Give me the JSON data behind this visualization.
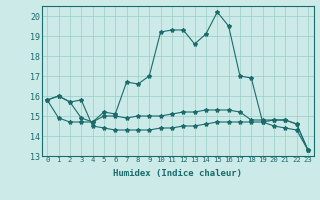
{
  "title": "",
  "xlabel": "Humidex (Indice chaleur)",
  "x_labels": [
    "0",
    "1",
    "2",
    "3",
    "4",
    "5",
    "6",
    "7",
    "8",
    "9",
    "10",
    "11",
    "12",
    "13",
    "14",
    "15",
    "16",
    "17",
    "18",
    "19",
    "20",
    "21",
    "22",
    "23"
  ],
  "ylim": [
    13,
    20.5
  ],
  "xlim": [
    -0.5,
    23.5
  ],
  "yticks": [
    13,
    14,
    15,
    16,
    17,
    18,
    19,
    20
  ],
  "background_color": "#cceae7",
  "grid_color": "#99ccc8",
  "line_color": "#1a6b6b",
  "series1": [
    15.8,
    16.0,
    15.7,
    15.8,
    14.5,
    14.4,
    14.3,
    14.3,
    14.3,
    14.3,
    14.4,
    14.4,
    14.5,
    14.5,
    14.6,
    14.7,
    14.7,
    14.7,
    14.7,
    14.7,
    14.5,
    14.4,
    14.3,
    13.3
  ],
  "series2": [
    15.8,
    16.0,
    15.7,
    14.9,
    14.7,
    15.2,
    15.1,
    16.7,
    16.6,
    17.0,
    19.2,
    19.3,
    19.3,
    18.6,
    19.1,
    20.2,
    19.5,
    17.0,
    16.9,
    14.7,
    14.8,
    14.8,
    14.6,
    13.3
  ],
  "series3": [
    15.8,
    14.9,
    14.7,
    14.7,
    14.7,
    15.0,
    15.0,
    14.9,
    15.0,
    15.0,
    15.0,
    15.1,
    15.2,
    15.2,
    15.3,
    15.3,
    15.3,
    15.2,
    14.8,
    14.8,
    14.8,
    14.8,
    14.6,
    13.3
  ]
}
